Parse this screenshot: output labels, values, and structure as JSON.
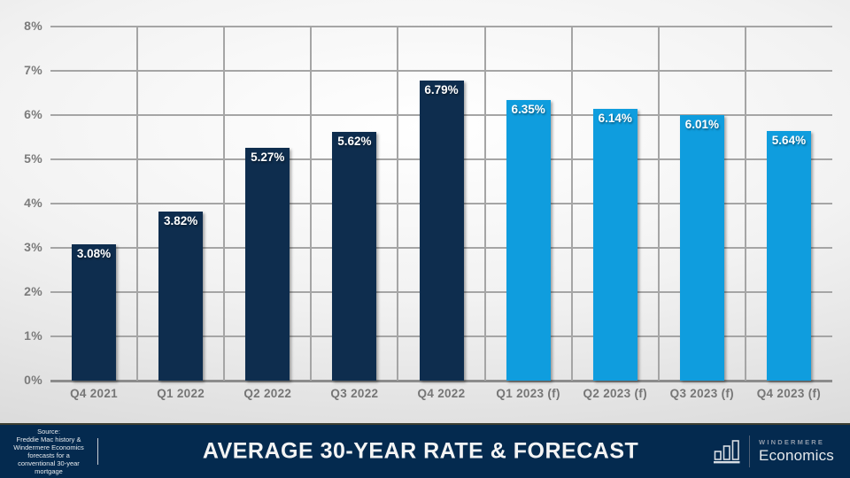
{
  "chart_data": {
    "type": "bar",
    "title": "AVERAGE 30-YEAR RATE & FORECAST",
    "ylabel": "",
    "xlabel": "",
    "ylim": [
      0,
      8
    ],
    "ytick_step": 1,
    "ytick_labels_top_to_bottom": [
      "8%",
      "7%",
      "6%",
      "5%",
      "4%",
      "3%",
      "2%",
      "1%",
      "0%"
    ],
    "grid": "horizontal 1% lines and vertical category separators",
    "legend_position": "none",
    "categories": [
      "Q4 2021",
      "Q1 2022",
      "Q2 2022",
      "Q3 2022",
      "Q4 2022",
      "Q1 2023 (f)",
      "Q2 2023 (f)",
      "Q3 2023 (f)",
      "Q4 2023 (f)"
    ],
    "values": [
      3.08,
      3.82,
      5.27,
      5.62,
      6.79,
      6.35,
      6.14,
      6.01,
      5.64
    ],
    "bars": [
      {
        "label": "Q4 2021",
        "value": 3.08,
        "display": "3.08%",
        "kind": "history"
      },
      {
        "label": "Q1 2022",
        "value": 3.82,
        "display": "3.82%",
        "kind": "history"
      },
      {
        "label": "Q2 2022",
        "value": 5.27,
        "display": "5.27%",
        "kind": "history"
      },
      {
        "label": "Q3 2022",
        "value": 5.62,
        "display": "5.62%",
        "kind": "history"
      },
      {
        "label": "Q4 2022",
        "value": 6.79,
        "display": "6.79%",
        "kind": "history"
      },
      {
        "label": "Q1 2023 (f)",
        "value": 6.35,
        "display": "6.35%",
        "kind": "forecast"
      },
      {
        "label": "Q2 2023 (f)",
        "value": 6.14,
        "display": "6.14%",
        "kind": "forecast"
      },
      {
        "label": "Q3 2023 (f)",
        "value": 6.01,
        "display": "6.01%",
        "kind": "forecast"
      },
      {
        "label": "Q4 2023 (f)",
        "value": 5.64,
        "display": "5.64%",
        "kind": "forecast"
      }
    ],
    "colors": {
      "history_bar": "#0e2d4e",
      "forecast_bar": "#0f9dde",
      "gridline": "#a5a5a5",
      "axis_line": "#8c8c8c",
      "tick_text": "#7b7b7b",
      "bar_label_text": "#ffffff"
    }
  },
  "footer": {
    "source_lines": [
      "Source:",
      "Freddie Mac history &",
      "Windermere Economics",
      "forecasts for a",
      "conventional 30-year",
      "mortgage"
    ],
    "title": "AVERAGE 30-YEAR RATE & FORECAST",
    "brand": {
      "name_top": "WINDERMERE",
      "name_bottom": "Economics"
    },
    "colors": {
      "background": "#042a4f",
      "top_border": "#3c3e31"
    }
  }
}
